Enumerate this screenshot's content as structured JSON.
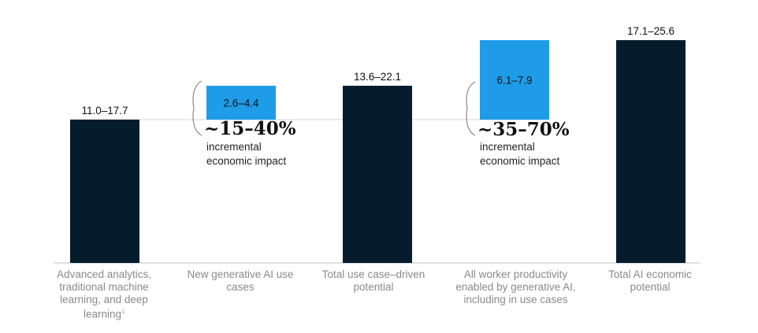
{
  "chart_data": {
    "type": "bar",
    "subtype": "waterfall",
    "categories": [
      "Advanced analytics, traditional machine learning, and deep learning",
      "New generative AI use cases",
      "Total use case–driven potential",
      "All worker productivity enabled by generative AI, including in use cases",
      "Total AI economic potential"
    ],
    "footnote_marker": "1",
    "bars": [
      {
        "kind": "total",
        "low": 0,
        "high": 11.0,
        "label": "11.0–17.7",
        "color": "#051c2c"
      },
      {
        "kind": "increment",
        "low": 11.0,
        "high": 13.6,
        "label": "2.6–4.4",
        "color": "#1f9ce8"
      },
      {
        "kind": "total",
        "low": 0,
        "high": 13.6,
        "label": "13.6–22.1",
        "color": "#051c2c"
      },
      {
        "kind": "increment",
        "low": 11.0,
        "high": 17.1,
        "label": "6.1–7.9",
        "color": "#1f9ce8"
      },
      {
        "kind": "total",
        "low": 0,
        "high": 17.1,
        "label": "17.1–25.6",
        "color": "#051c2c"
      }
    ],
    "annotations": [
      {
        "big": "~15–40%",
        "line1": "incremental",
        "line2": "economic impact"
      },
      {
        "big": "~35–70%",
        "line1": "incremental",
        "line2": "economic impact"
      }
    ],
    "ylim": [
      0,
      17.1
    ],
    "grid": false,
    "xlabel": "",
    "ylabel": ""
  }
}
